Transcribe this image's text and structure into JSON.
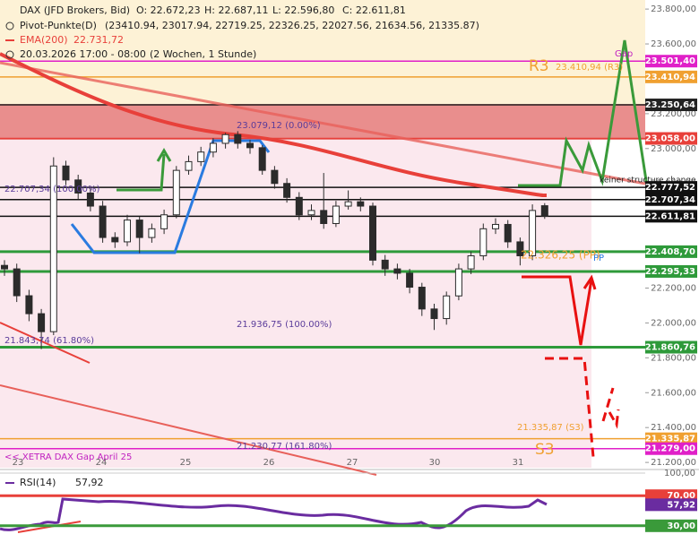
{
  "chart_data": {
    "type": "candlestick",
    "title": "DAX (JFD Brokers, Bid)",
    "ohlc_labels": [
      "O: 22.672,23",
      "H: 22.687,11",
      "L: 22.596,80",
      "C: 22.611,81"
    ],
    "legend": [
      {
        "name": "Pivot-Punkte(D)",
        "text": "(23410.94, 23017.94, 22719.25, 22326.25, 22027.56, 21634.56, 21335.87)"
      },
      {
        "name": "EMA(200)",
        "text": "22.731,72"
      },
      {
        "name": "20.03.2026 17:00 - 08:00",
        "text": "(2 Wochen, 1 Stunde)"
      }
    ],
    "color": "#2b2b2b",
    "open": [
      22330,
      22310,
      22156,
      22053,
      21950,
      22900,
      22820,
      22745,
      22670,
      22490,
      22465,
      22590,
      22490,
      22540,
      22620,
      22875,
      22925,
      22980,
      23030,
      23080,
      23030,
      23005,
      22875,
      22800,
      22720,
      22620,
      22645,
      22570,
      22670,
      22695,
      22670,
      22360,
      22310,
      22285,
      22205,
      22080,
      22025,
      22155,
      22310,
      22385,
      22540,
      22565,
      22465,
      22385,
      22672.23
    ],
    "high": [
      22360,
      22340,
      22190,
      22080,
      22950,
      22930,
      22850,
      22780,
      22700,
      22520,
      22620,
      22610,
      22570,
      22650,
      22900,
      22960,
      23010,
      23060,
      23090,
      23100,
      23050,
      23020,
      22900,
      22830,
      22750,
      22680,
      22860,
      22700,
      22760,
      22720,
      22690,
      22390,
      22340,
      22310,
      22230,
      22110,
      22180,
      22340,
      22410,
      22570,
      22600,
      22590,
      22490,
      22680,
      22687.11
    ],
    "low": [
      22270,
      22120,
      22010,
      21850,
      21930,
      22790,
      22710,
      22640,
      22460,
      22430,
      22440,
      22400,
      22460,
      22510,
      22600,
      22850,
      22900,
      22950,
      23000,
      23000,
      22970,
      22850,
      22770,
      22690,
      22590,
      22590,
      22540,
      22550,
      22650,
      22640,
      22330,
      22270,
      22250,
      22170,
      22040,
      21960,
      21990,
      22130,
      22280,
      22360,
      22510,
      22430,
      22330,
      22360,
      22596.8
    ],
    "close": [
      22310,
      22156,
      22053,
      21950,
      22900,
      22820,
      22745,
      22670,
      22490,
      22465,
      22590,
      22490,
      22540,
      22620,
      22875,
      22925,
      22980,
      23030,
      23080,
      23030,
      23005,
      22875,
      22800,
      22720,
      22620,
      22645,
      22570,
      22670,
      22695,
      22670,
      22360,
      22310,
      22285,
      22205,
      22080,
      22025,
      22155,
      22310,
      22385,
      22540,
      22565,
      22465,
      22385,
      22645,
      22611.81
    ],
    "x_day_labels": [
      "23",
      "24",
      "25",
      "26",
      "27",
      "30",
      "31"
    ],
    "ylim": [
      21180,
      23852
    ],
    "yticks": [
      {
        "value": 21200,
        "label": "21.200,00"
      },
      {
        "value": 21400,
        "label": "21.400,00"
      },
      {
        "value": 21600,
        "label": "21.600,00"
      },
      {
        "value": 21800,
        "label": "21.800,00"
      },
      {
        "value": 22000,
        "label": "22.000,00"
      },
      {
        "value": 22200,
        "label": "22.200,00"
      },
      {
        "value": 22400,
        "label": "22.400,00"
      },
      {
        "value": 22600,
        "label": "22.600,00"
      },
      {
        "value": 22800,
        "label": "22.800,00"
      },
      {
        "value": 23000,
        "label": "23.000,00"
      },
      {
        "value": 23200,
        "label": "23.200,00"
      },
      {
        "value": 23400,
        "label": "23.400,00"
      },
      {
        "value": 23600,
        "label": "23.600,00"
      },
      {
        "value": 23800,
        "label": "23.800,00"
      }
    ],
    "levels": [
      {
        "value": 23501.4,
        "label": "23.501,40",
        "color": "#e020c8"
      },
      {
        "value": 23410.94,
        "label": "23.410,94",
        "color": "#f0a030"
      },
      {
        "value": 23250.64,
        "label": "23.250,64",
        "color": "#222222"
      },
      {
        "value": 23058.0,
        "label": "23.058,00",
        "color": "#e8403a"
      },
      {
        "value": 22777.52,
        "label": "22.777,52",
        "color": "#111111"
      },
      {
        "value": 22707.34,
        "label": "22.707,34",
        "color": "#111111"
      },
      {
        "value": 22611.81,
        "label": "22.611,81",
        "color": "#111111"
      },
      {
        "value": 22408.7,
        "label": "22.408,70",
        "color": "#2e9a3a"
      },
      {
        "value": 22295.33,
        "label": "22.295,33",
        "color": "#2e9a3a"
      },
      {
        "value": 21860.76,
        "label": "21.860,76",
        "color": "#2e9a3a"
      },
      {
        "value": 21335.87,
        "label": "21.335,87",
        "color": "#f0a030"
      },
      {
        "value": 21279.0,
        "label": "21.279,00",
        "color": "#e020c8"
      }
    ],
    "annotations": [
      "23.079,12 (0.00%)",
      "22.707,34 (100.00%)",
      "21.936,75 (100.00%)",
      "21.843,74 (61.80%)",
      "21.230,77 (161.80%)",
      "<< XETRA DAX Gap April 25",
      "21.335,87 (S3)",
      "S3",
      "R3",
      "23.410,94 (R3)",
      "PP",
      "22.326,25 (PP)",
      "Gap",
      "keiner structure change"
    ],
    "rsi": {
      "name": "RSI(14)",
      "value": 57.92,
      "value_label": "57,92",
      "color": "#6a2ca0",
      "ylim": [
        0,
        100
      ],
      "yticks": [
        {
          "value": 100,
          "label": "100,00"
        },
        {
          "value": 70,
          "label": "70,00"
        },
        {
          "value": 30,
          "label": "30,00"
        }
      ]
    }
  }
}
